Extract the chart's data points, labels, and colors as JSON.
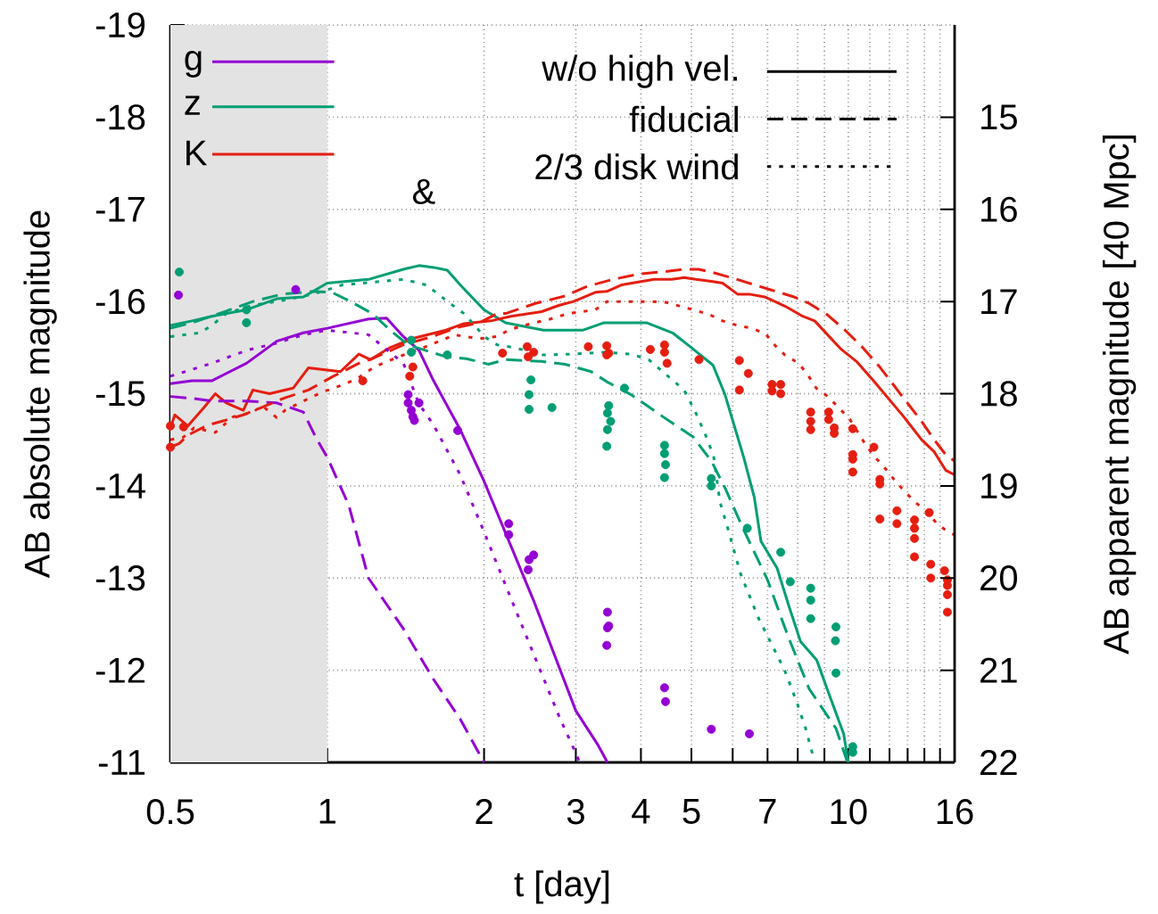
{
  "chart_data": {
    "type": "line",
    "xlabel": "t [day]",
    "ylabel": "AB absolute magnitude",
    "y2label": "AB apparent magnitude [40 Mpc]",
    "log": "x",
    "grid": true,
    "legend": "top left",
    "xlim": [
      0.5,
      16
    ],
    "ylim": [
      -11,
      -19
    ],
    "y2lim": [
      22,
      14
    ],
    "xticks": [
      0.5,
      1,
      2,
      3,
      4,
      5,
      {
        "value": 6,
        "label": null
      },
      7,
      {
        "value": 8,
        "label": null
      },
      {
        "value": 9,
        "label": null
      },
      10,
      {
        "value": 11,
        "label": null
      },
      {
        "value": 12,
        "label": null
      },
      {
        "value": 13,
        "label": null
      },
      {
        "value": 14,
        "label": null
      },
      {
        "value": 15,
        "label": null
      },
      16
    ],
    "yticks": [
      -19,
      -18,
      -17,
      -16,
      -15,
      -14,
      -13,
      -12,
      -11
    ],
    "y2ticks": [
      15,
      16,
      17,
      18,
      19,
      20,
      21,
      22
    ],
    "bands": [
      {
        "axis": "x",
        "from": 0.5,
        "to": 1,
        "color": "#e3e3e3"
      }
    ],
    "annotations": [
      "w/o high vel.",
      "fiducial",
      "2/3 disk wind",
      "&"
    ],
    "series": [
      {
        "name": "g",
        "color": "#9400d3",
        "line_style": "solid",
        "x": [
          0.5,
          0.55,
          0.6,
          0.7,
          0.8,
          0.9,
          1,
          1.2,
          1.3,
          1.4,
          1.5,
          1.6,
          1.8,
          2,
          2.5,
          3,
          3.3,
          3.45
        ],
        "values": [
          -15.11,
          -15.14,
          -15.14,
          -15.33,
          -15.57,
          -15.66,
          -15.71,
          -15.81,
          -15.82,
          -15.62,
          -15.47,
          -15.14,
          -14.61,
          -14.05,
          -12.73,
          -11.56,
          -11.2,
          -11.0
        ]
      },
      {
        "name": "z",
        "color": "#009e73",
        "line_style": "solid",
        "x": [
          0.5,
          0.55,
          0.6,
          0.7,
          0.8,
          0.9,
          1,
          1.2,
          1.4,
          1.5,
          1.6,
          1.7,
          1.8,
          2,
          2.2,
          2.6,
          3.1,
          3.4,
          4.1,
          4.6,
          5,
          5.5,
          5.8,
          6.3,
          6.6,
          6.8,
          7.3,
          7.7,
          8.1,
          8.7,
          9.2,
          9.8,
          10
        ],
        "values": [
          -15.74,
          -15.79,
          -15.84,
          -15.91,
          -16.03,
          -16.05,
          -16.2,
          -16.24,
          -16.35,
          -16.39,
          -16.37,
          -16.34,
          -16.18,
          -15.91,
          -15.77,
          -15.69,
          -15.69,
          -15.77,
          -15.77,
          -15.66,
          -15.5,
          -15.31,
          -14.99,
          -14.31,
          -13.88,
          -13.4,
          -13.11,
          -12.69,
          -12.31,
          -12.11,
          -11.73,
          -11.31,
          -11.0
        ]
      },
      {
        "name": "K",
        "color": "#e51e10",
        "line_style": "solid",
        "x": [
          0.5,
          0.51,
          0.54,
          0.58,
          0.61,
          0.64,
          0.69,
          0.72,
          0.775,
          0.86,
          0.92,
          1.06,
          1.15,
          1.21,
          1.32,
          1.46,
          1.69,
          1.83,
          2.06,
          2.25,
          2.58,
          2.79,
          2.97,
          3.27,
          3.44,
          3.67,
          4.24,
          4.58,
          4.84,
          5.1,
          5.46,
          5.74,
          6.13,
          6.46,
          6.91,
          7.56,
          8.18,
          8.62,
          9.7,
          10.37,
          11.22,
          12.78,
          13.83,
          14.62,
          15.38,
          16
        ],
        "values": [
          -14.63,
          -14.77,
          -14.65,
          -14.85,
          -15.0,
          -14.9,
          -14.82,
          -15.04,
          -15.0,
          -15.06,
          -15.28,
          -15.24,
          -15.43,
          -15.37,
          -15.5,
          -15.6,
          -15.69,
          -15.76,
          -15.79,
          -15.84,
          -15.89,
          -15.96,
          -16.0,
          -16.1,
          -16.11,
          -16.18,
          -16.24,
          -16.24,
          -16.26,
          -16.24,
          -16.22,
          -16.2,
          -16.08,
          -16.08,
          -16.05,
          -15.95,
          -15.84,
          -15.79,
          -15.48,
          -15.35,
          -15.13,
          -14.75,
          -14.5,
          -14.37,
          -14.17,
          -14.12
        ]
      },
      {
        "color": "#9400d3",
        "line_style": "dashed",
        "x": [
          0.5,
          0.55,
          0.6,
          0.7,
          0.8,
          0.9,
          0.95,
          1,
          1.1,
          1.2,
          1.4,
          1.6,
          1.8,
          2
        ],
        "values": [
          -14.97,
          -14.95,
          -14.92,
          -14.92,
          -14.9,
          -14.8,
          -14.53,
          -14.31,
          -13.79,
          -13.0,
          -12.45,
          -11.9,
          -11.47,
          -11.0
        ]
      },
      {
        "color": "#009e73",
        "line_style": "dashed",
        "x": [
          0.5,
          0.55,
          0.6,
          0.65,
          0.72,
          0.82,
          0.94,
          1.02,
          1.1,
          1.22,
          1.32,
          1.43,
          1.69,
          1.85,
          2.04,
          2.2,
          2.58,
          2.86,
          3.21,
          3.44,
          3.83,
          4.41,
          5.04,
          5.46,
          5.81,
          6.28,
          7.0,
          7.65,
          8.41,
          9.47,
          9.94
        ],
        "values": [
          -15.71,
          -15.77,
          -15.84,
          -15.91,
          -16.0,
          -16.08,
          -16.11,
          -16.1,
          -16.01,
          -15.87,
          -15.69,
          -15.53,
          -15.4,
          -15.38,
          -15.32,
          -15.37,
          -15.35,
          -15.32,
          -15.24,
          -15.13,
          -14.99,
          -14.75,
          -14.53,
          -14.27,
          -13.97,
          -13.54,
          -12.98,
          -12.38,
          -11.8,
          -11.37,
          -11.02
        ]
      },
      {
        "color": "#e51e10",
        "line_style": "dashed",
        "x": [
          0.5,
          0.52,
          0.54,
          0.59,
          0.636,
          0.69,
          0.74,
          0.825,
          0.92,
          1.02,
          1.15,
          1.22,
          1.4,
          1.59,
          1.78,
          1.96,
          2.12,
          2.2,
          2.51,
          2.86,
          3.14,
          3.53,
          3.98,
          4.36,
          4.84,
          5.16,
          5.46,
          6.04,
          7.07,
          7.87,
          8.41,
          9.1,
          9.86,
          10.66,
          11.53,
          12.78,
          13.83,
          14.62,
          15.38,
          16
        ],
        "values": [
          -14.42,
          -14.46,
          -14.55,
          -14.66,
          -14.71,
          -14.77,
          -14.84,
          -14.95,
          -15.04,
          -15.18,
          -15.33,
          -15.38,
          -15.53,
          -15.62,
          -15.72,
          -15.77,
          -15.87,
          -15.87,
          -15.98,
          -16.06,
          -16.16,
          -16.24,
          -16.3,
          -16.32,
          -16.35,
          -16.35,
          -16.32,
          -16.25,
          -16.13,
          -16.05,
          -15.98,
          -15.86,
          -15.69,
          -15.5,
          -15.28,
          -14.95,
          -14.7,
          -14.5,
          -14.34,
          -14.27
        ]
      },
      {
        "color": "#9400d3",
        "line_style": "dotted",
        "x": [
          0.5,
          0.6,
          0.7,
          0.8,
          0.9,
          1,
          1.2,
          1.4,
          1.5,
          1.6,
          1.8,
          2,
          2.2,
          2.5,
          2.8,
          3,
          3.05
        ],
        "values": [
          -15.19,
          -15.33,
          -15.47,
          -15.55,
          -15.64,
          -15.69,
          -15.64,
          -15.33,
          -14.89,
          -14.66,
          -14.12,
          -13.5,
          -12.92,
          -12.15,
          -11.47,
          -11.1,
          -11.0
        ]
      },
      {
        "color": "#009e73",
        "line_style": "dotted",
        "x": [
          0.5,
          0.57,
          0.6,
          0.64,
          0.72,
          0.82,
          0.94,
          1.07,
          1.22,
          1.4,
          1.55,
          1.72,
          1.83,
          1.92,
          2,
          2.12,
          2.29,
          2.58,
          2.94,
          3.4,
          3.83,
          4.14,
          4.53,
          4.84,
          5.1,
          5.37,
          5.52,
          5.67,
          5.9,
          6.21,
          6.72,
          7.19,
          7.56,
          7.96,
          8.28,
          8.58
        ],
        "values": [
          -15.62,
          -15.66,
          -15.74,
          -15.87,
          -15.96,
          -16.01,
          -16.08,
          -16.18,
          -16.21,
          -16.24,
          -16.18,
          -15.98,
          -15.87,
          -15.74,
          -15.62,
          -15.53,
          -15.5,
          -15.42,
          -15.43,
          -15.45,
          -15.43,
          -15.37,
          -15.18,
          -15.04,
          -14.79,
          -14.5,
          -14.31,
          -13.83,
          -13.5,
          -13.05,
          -12.57,
          -12.24,
          -11.99,
          -11.66,
          -11.37,
          -11.05
        ]
      },
      {
        "color": "#e51e10",
        "line_style": "dotted",
        "x": [
          0.5,
          0.53,
          0.555,
          0.61,
          0.66,
          0.72,
          0.75,
          0.8,
          0.83,
          0.9,
          0.98,
          1.03,
          1.14,
          1.23,
          1.37,
          1.53,
          1.76,
          1.83,
          1.98,
          2.12,
          2.23,
          2.38,
          2.68,
          2.9,
          3.27,
          3.44,
          3.87,
          4.19,
          4.48,
          5.04,
          5.41,
          5.74,
          6.13,
          6.53,
          6.94,
          7.22,
          7.56,
          8.03,
          8.35,
          8.68,
          9.14,
          9.58,
          10.05,
          10.79,
          11.22,
          11.77,
          12.24,
          12.78,
          13.4,
          14.22,
          14.79,
          15.56,
          16
        ],
        "values": [
          -14.5,
          -14.53,
          -14.63,
          -14.58,
          -14.75,
          -14.8,
          -14.87,
          -14.74,
          -14.82,
          -14.92,
          -15.02,
          -15.06,
          -15.16,
          -15.29,
          -15.4,
          -15.5,
          -15.64,
          -15.62,
          -15.6,
          -15.62,
          -15.69,
          -15.74,
          -15.81,
          -15.87,
          -15.91,
          -16.0,
          -16.0,
          -16.0,
          -15.99,
          -15.91,
          -15.86,
          -15.79,
          -15.74,
          -15.71,
          -15.65,
          -15.53,
          -15.42,
          -15.33,
          -15.21,
          -15.06,
          -14.97,
          -14.85,
          -14.73,
          -14.45,
          -14.32,
          -14.19,
          -14.07,
          -13.95,
          -13.83,
          -13.71,
          -13.59,
          -13.5,
          -13.47
        ]
      },
      {
        "type": "scatter",
        "color": "#9400d3",
        "marker": "circle",
        "x": [
          0.518,
          0.87,
          1.43,
          1.43,
          1.45,
          1.46,
          1.47,
          1.5,
          1.78,
          2.23,
          2.23,
          2.44,
          2.49,
          2.43,
          3.45,
          3.47,
          3.45,
          3.44,
          4.44,
          4.46,
          5.46,
          6.46
        ],
        "values": [
          -16.07,
          -16.13,
          -14.99,
          -14.9,
          -14.82,
          -14.75,
          -14.71,
          -14.9,
          -14.6,
          -13.59,
          -13.47,
          -13.2,
          -13.25,
          -13.09,
          -12.63,
          -12.48,
          -12.46,
          -12.27,
          -11.81,
          -11.66,
          -11.36,
          -11.31
        ]
      },
      {
        "type": "scatter",
        "color": "#009e73",
        "marker": "circle",
        "x": [
          0.52,
          0.7,
          0.7,
          1.45,
          1.45,
          1.7,
          2.46,
          2.44,
          2.44,
          2.7,
          3.47,
          3.45,
          3.5,
          3.45,
          3.44,
          3.72,
          4.44,
          4.44,
          4.46,
          4.44,
          5.46,
          5.46,
          6.4,
          7.42,
          7.74,
          8.47,
          8.47,
          8.47,
          9.47,
          9.45,
          9.47,
          10.2,
          10.2
        ],
        "values": [
          -16.32,
          -15.91,
          -15.77,
          -15.58,
          -15.45,
          -15.42,
          -15.15,
          -14.99,
          -14.83,
          -14.85,
          -14.87,
          -14.79,
          -14.7,
          -14.61,
          -14.43,
          -15.06,
          -14.44,
          -14.35,
          -14.23,
          -14.09,
          -14.08,
          -14.0,
          -13.54,
          -13.28,
          -12.96,
          -12.89,
          -12.76,
          -12.56,
          -12.47,
          -12.32,
          -11.97,
          -11.17,
          -11.11
        ]
      },
      {
        "type": "scatter",
        "color": "#e51e10",
        "marker": "circle",
        "x": [
          0.5,
          0.53,
          0.5,
          1.17,
          1.44,
          1.46,
          2.17,
          2.42,
          2.49,
          2.43,
          3.17,
          3.44,
          3.47,
          3.44,
          4.17,
          4.44,
          4.44,
          4.49,
          5.17,
          6.18,
          6.43,
          6.18,
          7.14,
          7.42,
          7.14,
          7.42,
          8.47,
          8.47,
          8.47,
          9.17,
          9.17,
          9.4,
          9.4,
          10.2,
          10.2,
          10.2,
          10.2,
          11.2,
          11.5,
          11.5,
          11.5,
          12.4,
          12.4,
          13.4,
          13.4,
          13.4,
          13.4,
          14.3,
          14.4,
          14.4,
          15.3,
          15.5,
          15.5,
          15.5,
          15.5
        ],
        "values": [
          -14.65,
          -14.64,
          -14.42,
          -15.14,
          -15.19,
          -15.29,
          -15.44,
          -15.51,
          -15.45,
          -15.4,
          -15.51,
          -15.52,
          -15.44,
          -15.42,
          -15.48,
          -15.53,
          -15.45,
          -15.33,
          -15.37,
          -15.36,
          -15.22,
          -15.04,
          -15.1,
          -15.1,
          -15.03,
          -15.0,
          -14.8,
          -14.7,
          -14.61,
          -14.8,
          -14.72,
          -14.63,
          -14.57,
          -14.62,
          -14.34,
          -14.29,
          -14.15,
          -14.42,
          -14.07,
          -14.02,
          -13.64,
          -13.73,
          -13.59,
          -13.63,
          -13.54,
          -13.43,
          -13.23,
          -13.71,
          -13.15,
          -13.0,
          -13.08,
          -12.98,
          -12.92,
          -12.82,
          -12.63
        ]
      }
    ]
  }
}
